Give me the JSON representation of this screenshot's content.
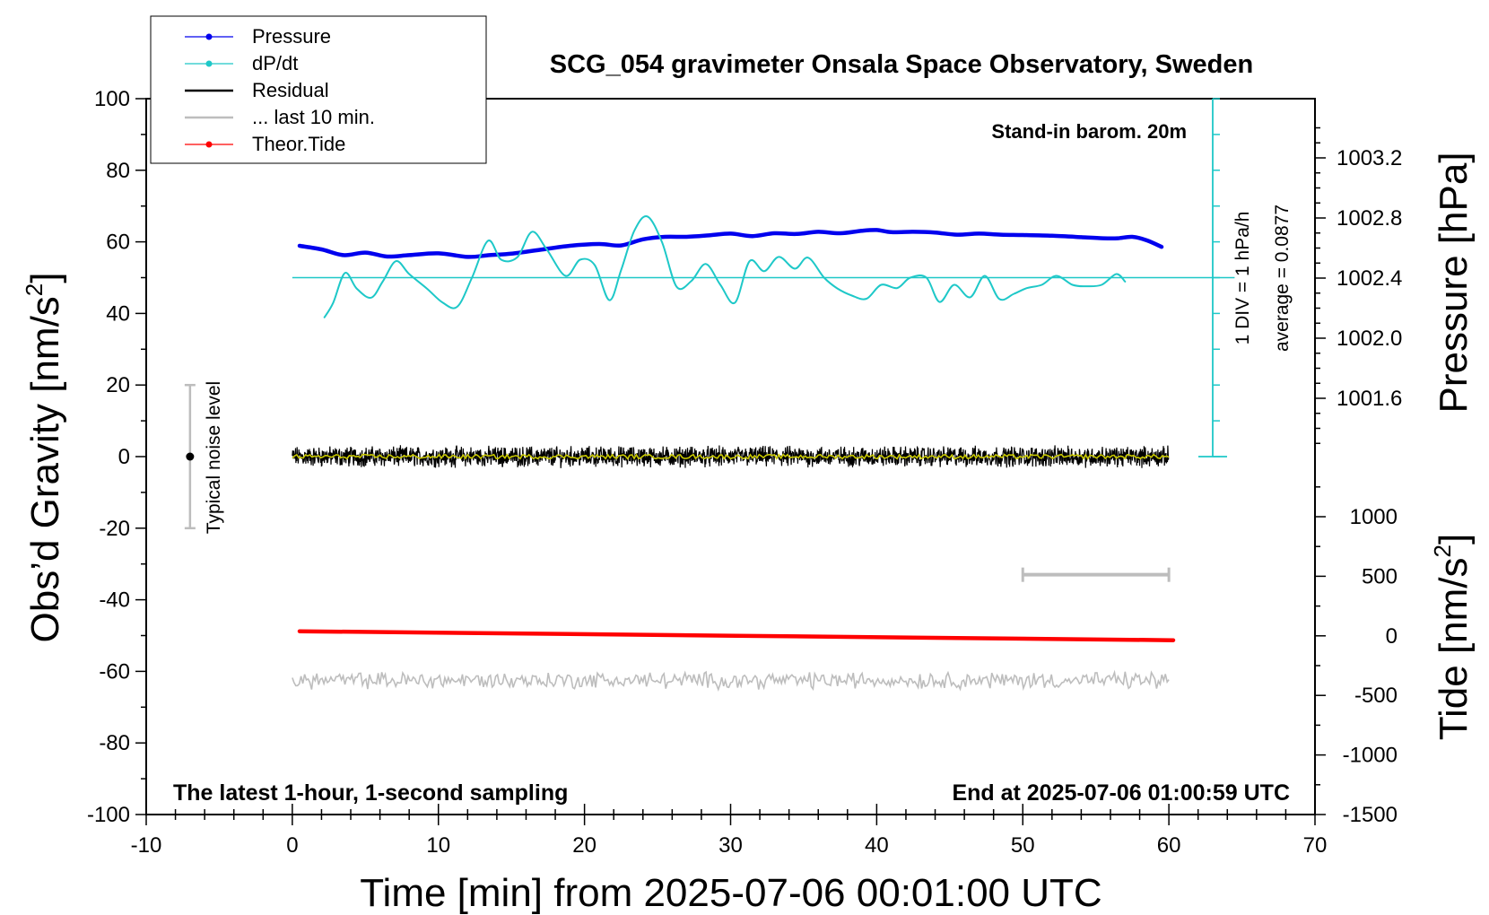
{
  "chart_data": {
    "type": "line",
    "title": "SCG_054 gravimeter Onsala Space Observatory, Sweden",
    "xlabel": "Time [min] from 2025-07-06 00:01:00 UTC",
    "ylabel": "Obs’d Gravity [nm/s",
    "ylabel_sup": "2",
    "ylabel_end": "]",
    "y2label": "Pressure [hPa]",
    "y3label": "Tide [nm/s",
    "y3label_sup": "2",
    "y3label_end": "]",
    "xlim": [
      -10,
      70
    ],
    "ylim": [
      -100,
      100
    ],
    "x_ticks": [
      "-10",
      "0",
      "10",
      "20",
      "30",
      "40",
      "50",
      "60",
      "70"
    ],
    "y_ticks": [
      "100",
      "80",
      "60",
      "40",
      "20",
      "0",
      "-20",
      "-40",
      "-60",
      "-80",
      "-100"
    ],
    "pressure_axis": {
      "ticks": [
        "1003.2",
        "1002.8",
        "1002.4",
        "1002.0",
        "1001.6"
      ],
      "values": [
        1003.2,
        1002.8,
        1002.4,
        1002.0,
        1001.6
      ]
    },
    "tide_axis": {
      "ticks": [
        "1000",
        "500",
        "0",
        "-500",
        "-1000",
        "-1500"
      ],
      "values": [
        1000,
        500,
        0,
        -500,
        -1000,
        -1500
      ]
    },
    "legend": {
      "placement": "top-left",
      "entries": [
        {
          "label": "Pressure",
          "color": "#0000ee",
          "marker": true
        },
        {
          "label": "dP/dt",
          "color": "#1ec8c8",
          "marker": true
        },
        {
          "label": "Residual",
          "color": "#000000",
          "marker": false
        },
        {
          "label": "... last 10 min.",
          "color": "#bdbdbd",
          "marker": false
        },
        {
          "label": "Theor.Tide",
          "color": "#ff0000",
          "marker": true
        }
      ]
    },
    "annotations": {
      "barometer": "Stand-in barom. 20m",
      "scale_div": "1 DIV = 1 hPa/h",
      "average": "average = 0.0877",
      "noise": "Typical noise level",
      "bottom_left": "The latest 1-hour, 1-second sampling",
      "bottom_right": "End at 2025-07-06 01:00:59 UTC"
    },
    "noise_bar": {
      "x": -7,
      "ylow": -20,
      "yhigh": 20
    },
    "dpdt_baseline": 50,
    "dpdt_scale": {
      "x": 63,
      "ylow": 0,
      "yhigh": 100
    },
    "last10_bar": {
      "x_start": 50,
      "x_end": 60,
      "y": -33
    },
    "series": [
      {
        "name": "Pressure",
        "color": "#0000ee",
        "x": [
          0.5,
          2,
          3.5,
          5,
          6.5,
          8,
          10,
          12,
          13.5,
          15,
          17,
          19,
          21,
          22.5,
          24,
          25.5,
          27,
          28.5,
          30,
          31.5,
          33,
          34.5,
          36,
          37.5,
          39,
          40,
          41,
          42.5,
          44,
          45.5,
          47,
          48.5,
          50,
          52,
          54,
          55.5,
          56.5,
          57.5,
          58.5,
          59.5
        ],
        "values": [
          58.9,
          57.9,
          56.3,
          57.0,
          55.9,
          56.3,
          56.8,
          55.8,
          56.3,
          56.7,
          57.8,
          58.9,
          59.4,
          59.0,
          60.7,
          61.4,
          61.4,
          61.8,
          62.3,
          61.6,
          62.4,
          62.2,
          62.8,
          62.4,
          63.1,
          63.3,
          62.7,
          62.8,
          62.6,
          62.0,
          62.3,
          62.0,
          61.9,
          61.7,
          61.3,
          61.0,
          61.0,
          61.4,
          60.4,
          58.6
        ]
      },
      {
        "name": "dP/dt",
        "color": "#1ec8c8",
        "x": [
          2.2,
          2.8,
          3.6,
          4.4,
          5.4,
          6.2,
          7.1,
          8.0,
          9.2,
          10.3,
          11.3,
          12.3,
          13.4,
          14.3,
          15.4,
          16.4,
          17.4,
          18.7,
          19.7,
          20.7,
          21.7,
          22.5,
          23.4,
          24.3,
          25.3,
          26.3,
          27.3,
          28.3,
          29.3,
          30.3,
          31.3,
          32.3,
          33.3,
          34.4,
          35.3,
          36.4,
          37.3,
          38.3,
          39.3,
          40.3,
          41.4,
          42.3,
          43.4,
          44.3,
          45.3,
          46.4,
          47.4,
          48.4,
          49.4,
          50.3,
          51.3,
          52.3,
          53.4,
          54.3,
          55.4,
          56.4,
          57.0
        ],
        "values": [
          38.9,
          43,
          51.3,
          47,
          44.4,
          49,
          54.6,
          51,
          47,
          43,
          41.9,
          50,
          60.3,
          55,
          55.7,
          62.8,
          58,
          50.5,
          55,
          53.5,
          43.7,
          52,
          63,
          67.1,
          60,
          47.5,
          49,
          53.8,
          48,
          43,
          54.6,
          51.8,
          55.8,
          52.5,
          55.6,
          50,
          47,
          45,
          44.1,
          48,
          47.1,
          50,
          50,
          43.2,
          48,
          44.5,
          50.5,
          44,
          45.5,
          47.1,
          48,
          50.5,
          48,
          47.6,
          48,
          51.0,
          48.9
        ]
      },
      {
        "name": "Theor.Tide",
        "color": "#ff0000",
        "x": [
          0.5,
          60.3
        ],
        "values": [
          -48.8,
          -51.3
        ]
      }
    ],
    "noise_series": [
      {
        "name": "Residual",
        "x_range": [
          0,
          60
        ],
        "center": 0,
        "amplitude": 2.2,
        "color": "#000000"
      },
      {
        "name": "... last 10 min.",
        "x_range": [
          0,
          60
        ],
        "center": -62.5,
        "amplitude": 1.8,
        "color": "#bdbdbd"
      }
    ],
    "residual_smooth_color": "#c8c800"
  }
}
